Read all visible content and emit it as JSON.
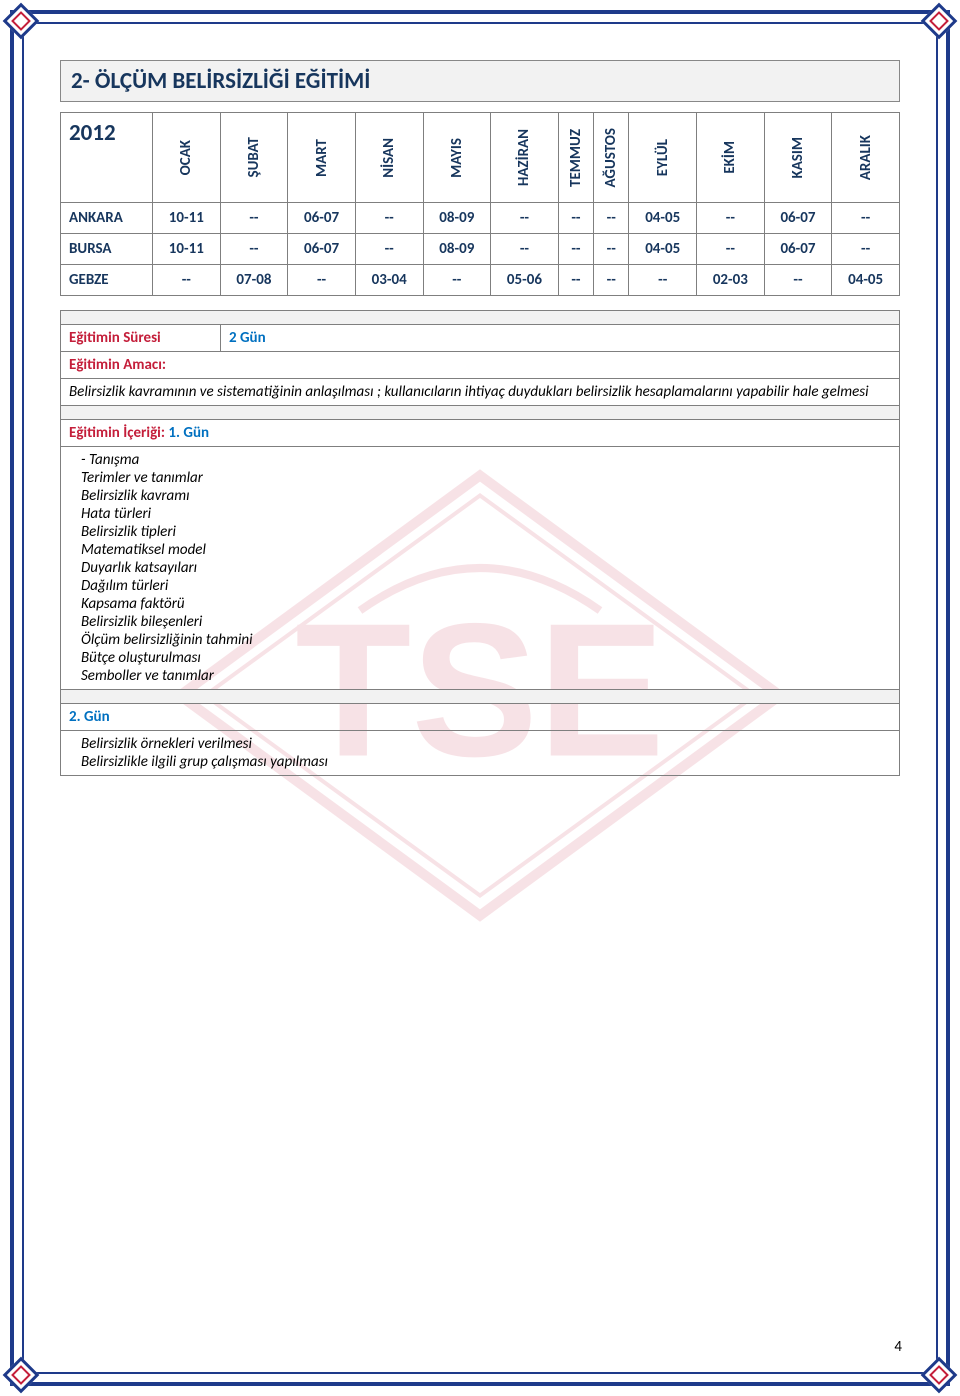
{
  "page_number": "4",
  "title": "2-  ÖLÇÜM BELİRSİZLİĞİ EĞİTİMİ",
  "year": "2012",
  "months": [
    "OCAK",
    "ŞUBAT",
    "MART",
    "NİSAN",
    "MAYIS",
    "HAZİRAN",
    "TEMMUZ",
    "AĞUSTOS",
    "EYLÜL",
    "EKİM",
    "KASIM",
    "ARALIK"
  ],
  "rows": [
    {
      "city": "ANKARA",
      "cells": [
        "10-11",
        "--",
        "06-07",
        "--",
        "08-09",
        "--",
        "--",
        "--",
        "04-05",
        "--",
        "06-07",
        "--"
      ]
    },
    {
      "city": "BURSA",
      "cells": [
        "10-11",
        "--",
        "06-07",
        "--",
        "08-09",
        "--",
        "--",
        "--",
        "04-05",
        "--",
        "06-07",
        "--"
      ]
    },
    {
      "city": "GEBZE",
      "cells": [
        "--",
        "07-08",
        "--",
        "03-04",
        "--",
        "05-06",
        "--",
        "--",
        "--",
        "02-03",
        "--",
        "04-05"
      ]
    }
  ],
  "duration_label": "Eğitimin Süresi",
  "duration_value": "2 Gün",
  "aim_label": "Eğitimin Amacı:",
  "aim_text": "Belirsizlik kavramının ve sistematiğinin  anlaşılması ; kullanıcıların ihtiyaç duydukları belirsizlik hesaplamalarını yapabilir hale gelmesi",
  "content_label": "Eğitimin İçeriği:",
  "day1_label": "1. Gün",
  "day1_items": [
    "   - Tanışma",
    "Terimler ve tanımlar",
    "Belirsizlik kavramı",
    "Hata türleri",
    "Belirsizlik tipleri",
    "Matematiksel model",
    "Duyarlık katsayıları",
    "Dağılım türleri",
    "Kapsama faktörü",
    "Belirsizlik bileşenleri",
    "Ölçüm belirsizliğinin tahmini",
    "Bütçe oluşturulması",
    "   Semboller ve tanımlar"
  ],
  "day2_label": "2. Gün",
  "day2_items": [
    "Belirsizlik örnekleri verilmesi",
    "Belirsizlikle ilgili grup çalışması yapılması"
  ],
  "colors": {
    "border_blue": "#1e3a8a",
    "accent_red": "#c41e3a",
    "text_navy": "#17365d",
    "label_blue": "#0070c0",
    "grey_bg": "#f2f2f2",
    "cell_border": "#7f7f7f"
  }
}
